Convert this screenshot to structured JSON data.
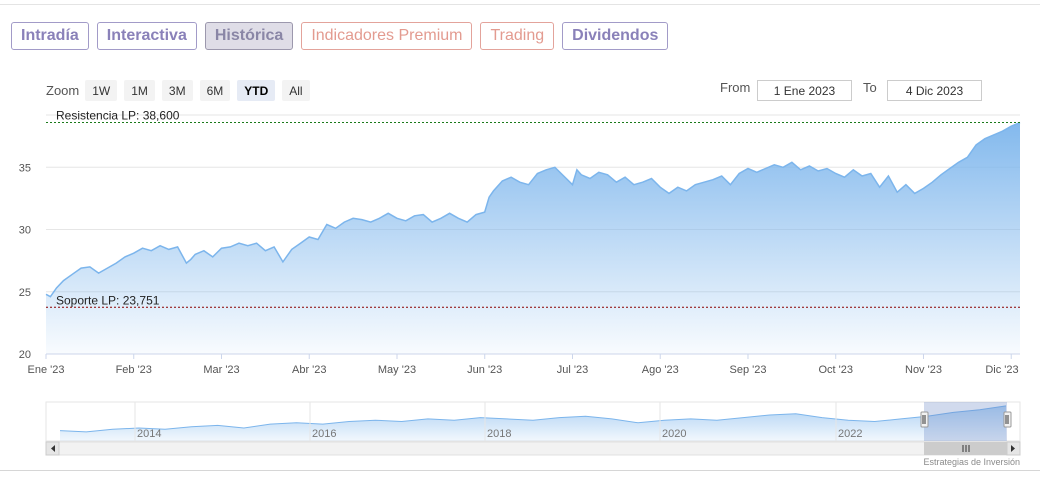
{
  "tabs": [
    {
      "label": "Intradía",
      "kind": "normal"
    },
    {
      "label": "Interactiva",
      "kind": "normal"
    },
    {
      "label": "Histórica",
      "kind": "active"
    },
    {
      "label": "Indicadores Premium",
      "kind": "premium"
    },
    {
      "label": "Trading",
      "kind": "trading"
    },
    {
      "label": "Dividendos",
      "kind": "normal"
    }
  ],
  "zoom": {
    "label": "Zoom",
    "buttons": [
      "1W",
      "1M",
      "3M",
      "6M",
      "YTD",
      "All"
    ],
    "selected": "YTD"
  },
  "range": {
    "from_label": "From",
    "from_value": "1 Ene 2023",
    "to_label": "To",
    "to_value": "4 Dic 2023"
  },
  "credit": "Estrategias de Inversión",
  "chart_data": {
    "type": "area",
    "title": "",
    "xlabel": "",
    "ylabel": "",
    "ylim": [
      20,
      39.2
    ],
    "yticks": [
      20,
      25,
      30,
      35
    ],
    "x_tick_labels": [
      "Ene '23",
      "Feb '23",
      "Mar '23",
      "Abr '23",
      "May '23",
      "Jun '23",
      "Jul '23",
      "Ago '23",
      "Sep '23",
      "Oct '23",
      "Nov '23",
      "Dic '23"
    ],
    "x_tick_months": [
      0,
      1,
      2,
      3,
      4,
      5,
      6,
      7,
      8,
      9,
      10,
      11
    ],
    "grid": true,
    "series_color": "#7cb5ec",
    "x": [
      0,
      0.05,
      0.12,
      0.2,
      0.3,
      0.4,
      0.5,
      0.6,
      0.7,
      0.8,
      0.9,
      1.0,
      1.1,
      1.2,
      1.3,
      1.4,
      1.5,
      1.6,
      1.65,
      1.7,
      1.8,
      1.9,
      2.0,
      2.1,
      2.2,
      2.3,
      2.4,
      2.5,
      2.6,
      2.7,
      2.8,
      2.9,
      3.0,
      3.1,
      3.2,
      3.3,
      3.4,
      3.5,
      3.6,
      3.7,
      3.8,
      3.9,
      4.0,
      4.1,
      4.2,
      4.3,
      4.4,
      4.5,
      4.6,
      4.7,
      4.8,
      4.9,
      5.0,
      5.05,
      5.1,
      5.2,
      5.3,
      5.4,
      5.5,
      5.6,
      5.7,
      5.8,
      5.9,
      6.0,
      6.05,
      6.1,
      6.2,
      6.3,
      6.4,
      6.5,
      6.6,
      6.7,
      6.8,
      6.9,
      7.0,
      7.1,
      7.2,
      7.3,
      7.4,
      7.5,
      7.6,
      7.7,
      7.8,
      7.9,
      8.0,
      8.1,
      8.2,
      8.3,
      8.4,
      8.5,
      8.6,
      8.7,
      8.8,
      8.9,
      9.0,
      9.1,
      9.2,
      9.3,
      9.4,
      9.5,
      9.6,
      9.7,
      9.8,
      9.9,
      10.0,
      10.1,
      10.2,
      10.3,
      10.4,
      10.5,
      10.6,
      10.7,
      10.8,
      10.9,
      11.0,
      11.1
    ],
    "values": [
      24.8,
      24.6,
      25.3,
      25.9,
      26.4,
      26.9,
      27.0,
      26.5,
      26.9,
      27.3,
      27.8,
      28.1,
      28.5,
      28.3,
      28.7,
      28.4,
      28.6,
      27.3,
      27.6,
      28.0,
      28.3,
      27.8,
      28.5,
      28.6,
      28.9,
      28.7,
      28.9,
      28.3,
      28.6,
      27.4,
      28.4,
      28.9,
      29.4,
      29.2,
      30.4,
      30.1,
      30.6,
      30.9,
      30.8,
      30.6,
      30.9,
      31.3,
      30.9,
      30.7,
      31.1,
      31.2,
      30.6,
      30.9,
      31.3,
      30.9,
      30.6,
      31.2,
      31.4,
      32.6,
      33.1,
      33.9,
      34.2,
      33.8,
      33.6,
      34.5,
      34.8,
      35.0,
      34.3,
      33.6,
      34.8,
      34.4,
      34.1,
      34.6,
      34.4,
      33.8,
      34.2,
      33.6,
      33.8,
      34.1,
      33.4,
      32.9,
      33.4,
      33.1,
      33.6,
      33.8,
      34.0,
      34.3,
      33.6,
      34.5,
      34.9,
      34.6,
      34.9,
      35.2,
      35.0,
      35.4,
      34.8,
      35.1,
      34.7,
      34.9,
      34.5,
      34.2,
      34.8,
      34.3,
      34.5,
      33.4,
      34.3,
      33.0,
      33.6,
      32.9,
      33.3,
      33.8,
      34.4,
      34.9,
      35.4,
      35.8,
      36.8,
      37.3,
      37.6,
      37.9,
      38.3,
      38.6
    ],
    "annotations": [
      {
        "label": "Resistencia LP: 38,600",
        "value": 38.6,
        "color": "#1a7a1a"
      },
      {
        "label": "Soporte LP: 23,751",
        "value": 23.751,
        "color": "#8b0000"
      }
    ],
    "navigator": {
      "years": [
        "2014",
        "2016",
        "2018",
        "2020",
        "2022"
      ],
      "values": [
        18,
        17,
        19,
        20,
        19,
        21,
        22,
        20,
        23,
        24,
        23,
        25,
        26,
        25,
        27,
        26,
        28,
        27,
        26,
        28,
        29,
        27,
        24,
        26,
        27,
        26,
        28,
        30,
        31,
        28,
        26,
        25,
        27,
        29,
        32,
        34,
        37
      ]
    }
  }
}
